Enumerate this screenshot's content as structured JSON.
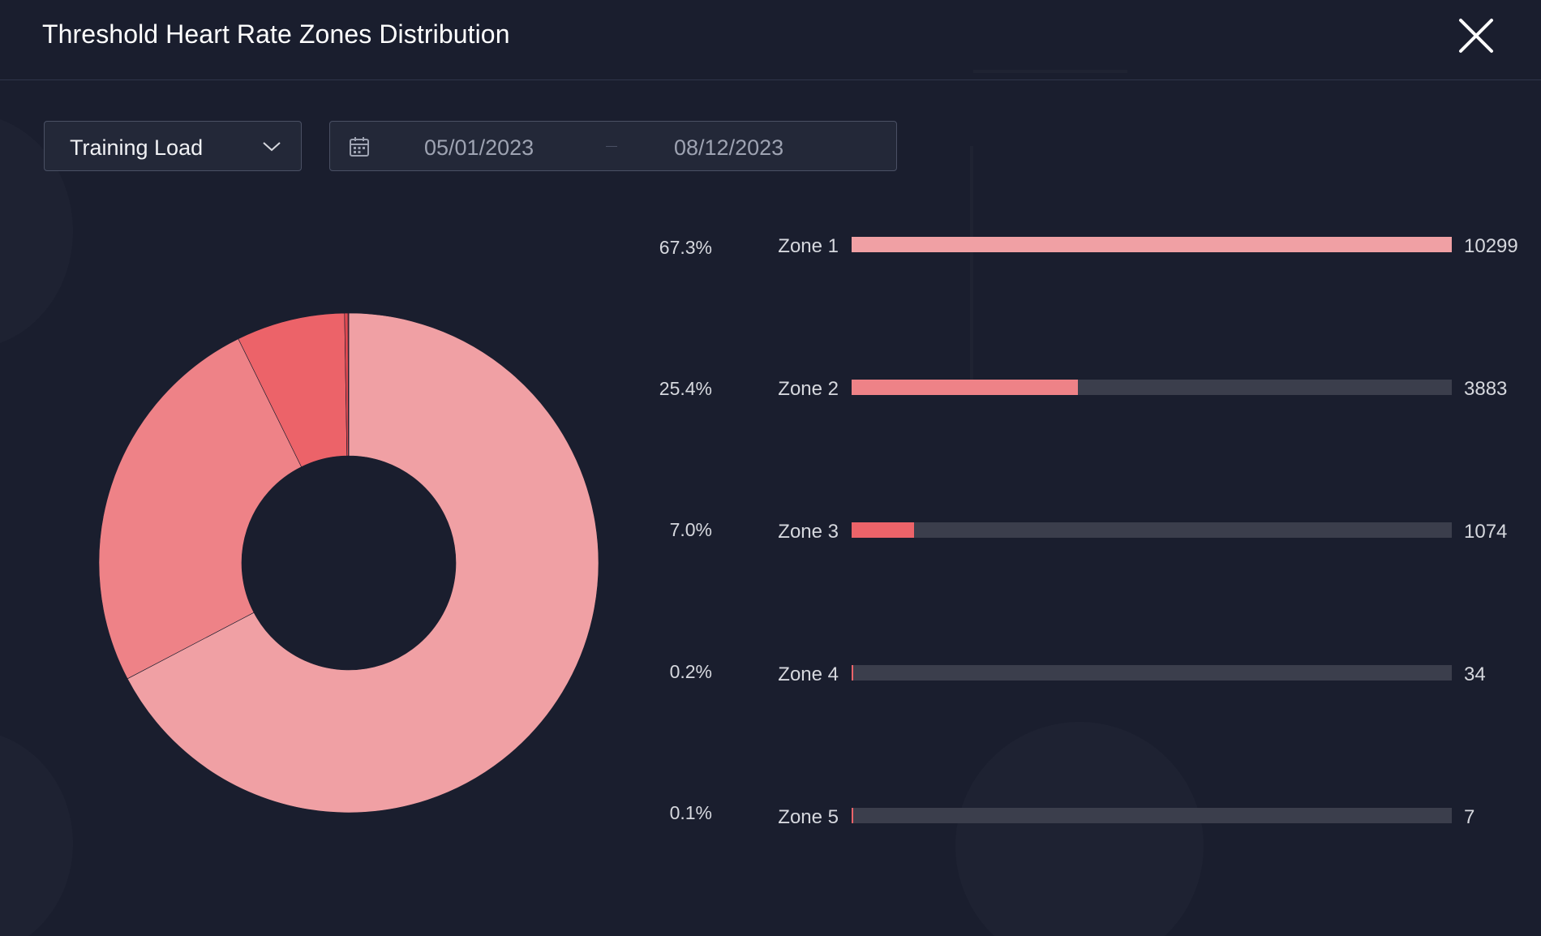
{
  "dialog": {
    "title": "Threshold Heart Rate Zones Distribution"
  },
  "filters": {
    "metric_selected": "Training Load",
    "date_start": "05/01/2023",
    "date_end": "08/12/2023"
  },
  "zones": [
    {
      "name": "Zone 1",
      "percent": "67.3%",
      "value": 10299,
      "value_text": "10299",
      "color": "#f0a0a4"
    },
    {
      "name": "Zone 2",
      "percent": "25.4%",
      "value": 3883,
      "value_text": "3883",
      "color": "#ee8287"
    },
    {
      "name": "Zone 3",
      "percent": "7.0%",
      "value": 1074,
      "value_text": "1074",
      "color": "#ec6369"
    },
    {
      "name": "Zone 4",
      "percent": "0.2%",
      "value": 34,
      "value_text": "34",
      "color": "#e04a52"
    },
    {
      "name": "Zone 5",
      "percent": "0.1%",
      "value": 7,
      "value_text": "7",
      "color": "#c0323a"
    }
  ],
  "colors": {
    "background": "#1a1e2e",
    "track": "#3b3e4c",
    "accent": "#ec6369"
  },
  "icons": {
    "close": "close-icon",
    "dropdown": "chevron-down-icon",
    "calendar": "calendar-icon"
  }
}
